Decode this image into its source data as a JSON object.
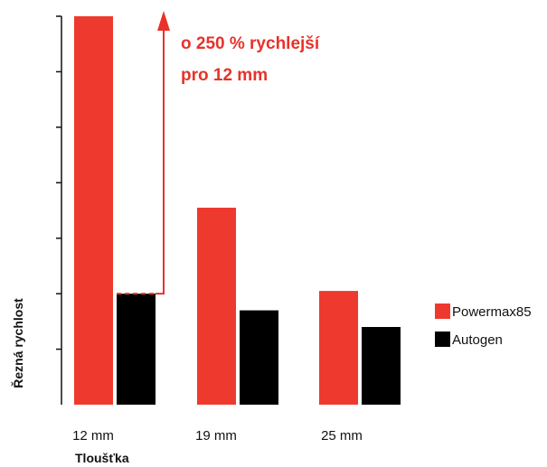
{
  "chart_data": {
    "type": "bar",
    "categories": [
      "12 mm",
      "19 mm",
      "25 mm"
    ],
    "series": [
      {
        "name": "Powermax85",
        "values": [
          7.0,
          3.55,
          2.05
        ],
        "color": "#ee3a2e"
      },
      {
        "name": "Autogen",
        "values": [
          2.0,
          1.7,
          1.4
        ],
        "color": "#000000"
      }
    ],
    "xlabel": "Tloušťka",
    "ylabel": "Řezná rychlost",
    "ylim": [
      0,
      7
    ],
    "yticks": [
      1,
      2,
      3,
      4,
      5,
      6,
      7
    ],
    "grid": false,
    "legend_position": "right",
    "annotation": {
      "lines": [
        "o 250 % rychlejší",
        "pro 12 mm"
      ],
      "from_value": 2.0,
      "category": "12 mm",
      "color": "#e8322a"
    }
  }
}
